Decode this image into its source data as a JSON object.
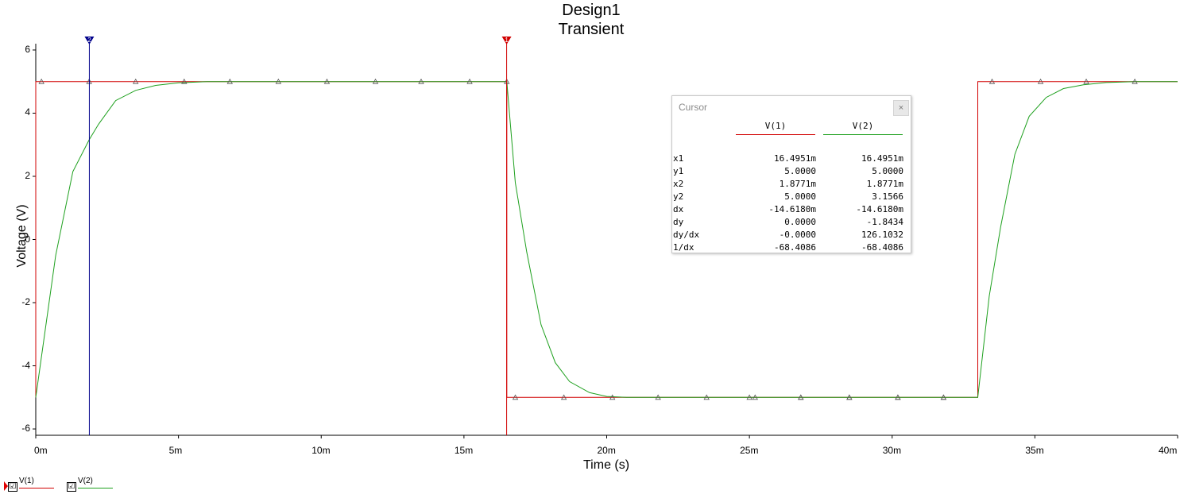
{
  "title": "Design1",
  "subtitle": "Transient",
  "chart_data": {
    "type": "line",
    "title": "Design1",
    "subtitle": "Transient",
    "xlabel": "Time (s)",
    "ylabel": "Voltage (V)",
    "xlim": [
      0,
      0.04
    ],
    "ylim": [
      -6.2,
      6.2
    ],
    "x_tick_labels": [
      "0m",
      "5m",
      "10m",
      "15m",
      "20m",
      "25m",
      "30m",
      "35m",
      "40m"
    ],
    "x_tick_values": [
      0,
      0.005,
      0.01,
      0.015,
      0.02,
      0.025,
      0.03,
      0.035,
      0.04
    ],
    "y_tick_labels": [
      "6",
      "4",
      "2",
      "0",
      "-2",
      "-4",
      "-6"
    ],
    "y_tick_values": [
      6,
      4,
      2,
      0,
      -2,
      -4,
      -6
    ],
    "grid": false,
    "series": [
      {
        "name": "V(1)",
        "color": "#d10000",
        "marker": "triangle",
        "x": [
          0,
          0,
          0.0165,
          0.0165,
          0.033,
          0.033,
          0.04
        ],
        "y": [
          -5,
          5,
          5,
          -5,
          -5,
          5,
          5
        ],
        "marker_x": [
          0.0002,
          0.00187,
          0.0035,
          0.0052,
          0.0068,
          0.0085,
          0.0102,
          0.0119,
          0.0135,
          0.0152,
          0.0165,
          0.0168,
          0.0185,
          0.0202,
          0.0218,
          0.0235,
          0.0252,
          0.0268,
          0.0285,
          0.0302,
          0.0318,
          0.0335,
          0.0352,
          0.0368,
          0.0385
        ]
      },
      {
        "name": "V(2)",
        "color": "#1ea01e",
        "marker": "triangle",
        "x": [
          0,
          0.0007,
          0.0013,
          0.00187,
          0.0022,
          0.0028,
          0.0035,
          0.0042,
          0.005,
          0.006,
          0.0073,
          0.0165,
          0.0168,
          0.0172,
          0.0177,
          0.0182,
          0.0187,
          0.0194,
          0.02,
          0.0207,
          0.0215,
          0.0225,
          0.024,
          0.025,
          0.033,
          0.0334,
          0.0338,
          0.0343,
          0.0348,
          0.0354,
          0.036,
          0.0367,
          0.0375,
          0.0385,
          0.04
        ],
        "y": [
          -5,
          -0.5,
          2.15,
          3.1566,
          3.65,
          4.4,
          4.72,
          4.88,
          4.96,
          5.0,
          5.0,
          5.0,
          1.8,
          -0.4,
          -2.7,
          -3.9,
          -4.5,
          -4.85,
          -4.97,
          -5.0,
          -5.0,
          -5.0,
          -5.0,
          -5.0,
          -5.0,
          -1.8,
          0.4,
          2.7,
          3.9,
          4.5,
          4.78,
          4.9,
          4.97,
          5.0,
          5.0
        ],
        "marker_x": [
          0.025,
          0.0268,
          0.0285,
          0.0302,
          0.0318
        ]
      }
    ],
    "cursors": [
      {
        "name": "1",
        "x": 0.0164951,
        "color": "#d10000"
      },
      {
        "name": "2",
        "x": 0.0018771,
        "color": "#00008b"
      }
    ],
    "legend": "bottom-left"
  },
  "cursor_window": {
    "title": "Cursor",
    "close_label": "×",
    "columns": [
      "V(1)",
      "V(2)"
    ],
    "rows": [
      {
        "label": "x1",
        "v1": "16.4951m",
        "v2": "16.4951m"
      },
      {
        "label": "y1",
        "v1": "5.0000",
        "v2": "5.0000"
      },
      {
        "label": "x2",
        "v1": "1.8771m",
        "v2": "1.8771m"
      },
      {
        "label": "y2",
        "v1": "5.0000",
        "v2": "3.1566"
      },
      {
        "label": "dx",
        "v1": "-14.6180m",
        "v2": "-14.6180m"
      },
      {
        "label": "dy",
        "v1": "0.0000",
        "v2": "-1.8434"
      },
      {
        "label": "dy/dx",
        "v1": "-0.0000",
        "v2": "126.1032"
      },
      {
        "label": "1/dx",
        "v1": "-68.4086",
        "v2": "-68.4086"
      }
    ]
  },
  "legend": {
    "items": [
      {
        "label": "V(1)",
        "checked": "☑",
        "color": "#d10000"
      },
      {
        "label": "V(2)",
        "checked": "☑",
        "color": "#1ea01e"
      }
    ]
  }
}
